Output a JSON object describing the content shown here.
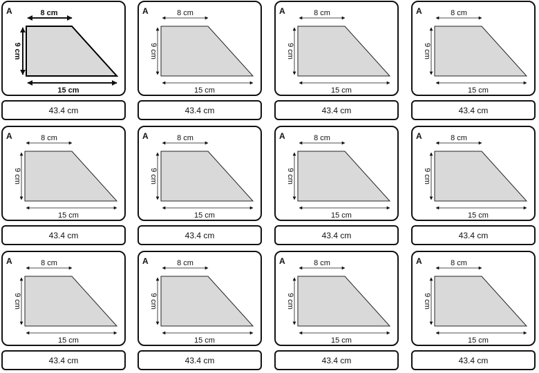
{
  "cards": [
    {
      "letter": "A",
      "top_label": "8 cm",
      "bottom_label": "15 cm",
      "side_label": "9 cm",
      "answer": "43.4 cm",
      "style": "bold"
    },
    {
      "letter": "A",
      "top_label": "8 cm",
      "bottom_label": "15 cm",
      "side_label": "9 cm",
      "answer": "43.4 cm",
      "style": "normal"
    },
    {
      "letter": "A",
      "top_label": "8 cm",
      "bottom_label": "15 cm",
      "side_label": "9 cm",
      "answer": "43.4 cm",
      "style": "normal"
    },
    {
      "letter": "A",
      "top_label": "8 cm",
      "bottom_label": "15 cm",
      "side_label": "9 cm",
      "answer": "43.4 cm",
      "style": "normal"
    },
    {
      "letter": "A",
      "top_label": "8 cm",
      "bottom_label": "15 cm",
      "side_label": "9 cm",
      "answer": "43.4 cm",
      "style": "normal"
    },
    {
      "letter": "A",
      "top_label": "8 cm",
      "bottom_label": "15 cm",
      "side_label": "9 cm",
      "answer": "43.4 cm",
      "style": "normal"
    },
    {
      "letter": "A",
      "top_label": "8 cm",
      "bottom_label": "15 cm",
      "side_label": "9 cm",
      "answer": "43.4 cm",
      "style": "normal"
    },
    {
      "letter": "A",
      "top_label": "8 cm",
      "bottom_label": "15 cm",
      "side_label": "9 cm",
      "answer": "43.4 cm",
      "style": "normal"
    },
    {
      "letter": "A",
      "top_label": "8 cm",
      "bottom_label": "15 cm",
      "side_label": "9 cm",
      "answer": "43.4 cm",
      "style": "normal"
    },
    {
      "letter": "A",
      "top_label": "8 cm",
      "bottom_label": "15 cm",
      "side_label": "9 cm",
      "answer": "43.4 cm",
      "style": "normal"
    },
    {
      "letter": "A",
      "top_label": "8 cm",
      "bottom_label": "15 cm",
      "side_label": "9 cm",
      "answer": "43.4 cm",
      "style": "normal"
    },
    {
      "letter": "A",
      "top_label": "8 cm",
      "bottom_label": "15 cm",
      "side_label": "9 cm",
      "answer": "43.4 cm",
      "style": "normal"
    }
  ]
}
